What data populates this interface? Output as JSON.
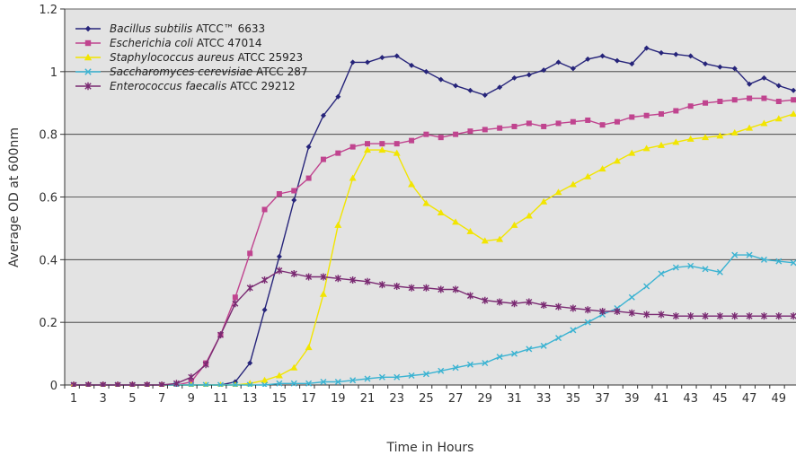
{
  "chart_data": {
    "type": "line",
    "title": "",
    "xlabel": "Time in Hours",
    "ylabel": "Average OD at 600nm",
    "ylim": [
      0,
      1.2
    ],
    "xlim": [
      1,
      49
    ],
    "yticks": [
      "0",
      "0.2",
      "0.4",
      "0.6",
      "0.8",
      "1",
      "1.2"
    ],
    "xticks": [
      "1",
      "3",
      "5",
      "7",
      "9",
      "11",
      "13",
      "15",
      "17",
      "19",
      "21",
      "23",
      "25",
      "27",
      "29",
      "31",
      "33",
      "35",
      "37",
      "39",
      "41",
      "43",
      "45",
      "47",
      "49"
    ],
    "grid": "horizontal",
    "legend_position": "top-left",
    "x": [
      1,
      2,
      3,
      4,
      5,
      6,
      7,
      8,
      9,
      10,
      11,
      12,
      13,
      14,
      15,
      16,
      17,
      18,
      19,
      20,
      21,
      22,
      23,
      24,
      25,
      26,
      27,
      28,
      29,
      30,
      31,
      32,
      33,
      34,
      35,
      36,
      37,
      38,
      39,
      40,
      41,
      42,
      43,
      44,
      45,
      46,
      47,
      48,
      49,
      50
    ],
    "series": [
      {
        "name_italic": "Bacillus subtilis",
        "name_rest": " ATCC™ 6633",
        "color": "#26247a",
        "marker": "diamond",
        "values": [
          0,
          0,
          0,
          0,
          0,
          0,
          0,
          0,
          0,
          0,
          0,
          0.01,
          0.07,
          0.24,
          0.41,
          0.59,
          0.76,
          0.86,
          0.92,
          1.03,
          1.03,
          1.045,
          1.05,
          1.02,
          1.0,
          0.975,
          0.955,
          0.94,
          0.925,
          0.95,
          0.98,
          0.99,
          1.005,
          1.03,
          1.01,
          1.04,
          1.05,
          1.035,
          1.025,
          1.075,
          1.06,
          1.055,
          1.05,
          1.025,
          1.015,
          1.01,
          0.96,
          0.98,
          0.955,
          0.94
        ]
      },
      {
        "name_italic": "Escherichia coli",
        "name_rest": "  ATCC 47014",
        "color": "#c0448f",
        "marker": "square",
        "values": [
          0,
          0,
          0,
          0,
          0,
          0,
          0,
          0,
          0.01,
          0.07,
          0.16,
          0.28,
          0.42,
          0.56,
          0.61,
          0.62,
          0.66,
          0.72,
          0.74,
          0.76,
          0.77,
          0.77,
          0.77,
          0.78,
          0.8,
          0.79,
          0.8,
          0.81,
          0.815,
          0.82,
          0.825,
          0.835,
          0.825,
          0.835,
          0.84,
          0.845,
          0.83,
          0.84,
          0.855,
          0.86,
          0.865,
          0.875,
          0.89,
          0.9,
          0.905,
          0.91,
          0.915,
          0.915,
          0.905,
          0.91
        ]
      },
      {
        "name_italic": "Staphylococcus aureus",
        "name_rest": "  ATCC 25923",
        "color": "#f2e500",
        "marker": "triangle",
        "values": [
          0,
          0,
          0,
          0,
          0,
          0,
          0,
          0,
          0,
          0,
          0,
          0,
          0.005,
          0.015,
          0.03,
          0.055,
          0.12,
          0.29,
          0.51,
          0.66,
          0.75,
          0.75,
          0.74,
          0.64,
          0.58,
          0.55,
          0.52,
          0.49,
          0.46,
          0.465,
          0.51,
          0.54,
          0.585,
          0.615,
          0.64,
          0.665,
          0.69,
          0.715,
          0.74,
          0.755,
          0.765,
          0.775,
          0.785,
          0.79,
          0.795,
          0.805,
          0.82,
          0.835,
          0.85,
          0.865
        ]
      },
      {
        "name_italic": "Saccharomyces cerevisiae",
        "name_rest": "  ATCC 287",
        "color": "#3bb3d2",
        "marker": "x",
        "values": [
          0,
          0,
          0,
          0,
          0,
          0,
          0,
          0,
          0,
          0,
          0,
          0,
          0,
          0,
          0.005,
          0.005,
          0.005,
          0.01,
          0.01,
          0.015,
          0.02,
          0.025,
          0.025,
          0.03,
          0.035,
          0.045,
          0.055,
          0.065,
          0.07,
          0.09,
          0.1,
          0.115,
          0.125,
          0.15,
          0.175,
          0.2,
          0.225,
          0.245,
          0.28,
          0.315,
          0.355,
          0.375,
          0.38,
          0.37,
          0.36,
          0.415,
          0.415,
          0.4,
          0.395,
          0.39
        ]
      },
      {
        "name_italic": "Enterococcus faecalis",
        "name_rest": "  ATCC 29212",
        "color": "#7a2a72",
        "marker": "star",
        "values": [
          0,
          0,
          0,
          0,
          0,
          0,
          0,
          0.005,
          0.025,
          0.065,
          0.16,
          0.26,
          0.31,
          0.335,
          0.365,
          0.355,
          0.345,
          0.345,
          0.34,
          0.335,
          0.33,
          0.32,
          0.315,
          0.31,
          0.31,
          0.305,
          0.305,
          0.285,
          0.27,
          0.265,
          0.26,
          0.265,
          0.255,
          0.25,
          0.245,
          0.24,
          0.235,
          0.235,
          0.23,
          0.225,
          0.225,
          0.22,
          0.22,
          0.22,
          0.22,
          0.22,
          0.22,
          0.22,
          0.22,
          0.22
        ]
      }
    ]
  }
}
